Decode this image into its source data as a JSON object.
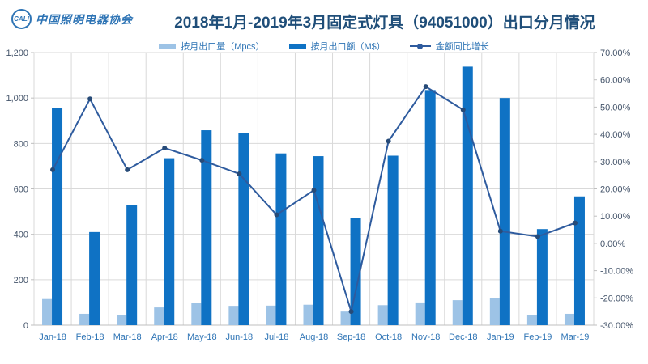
{
  "header": {
    "logo": {
      "org_abbr": "CALI",
      "org_name": "中国照明电器协会"
    },
    "title": "2018年1月-2019年3月固定式灯具（94051000）出口分月情况"
  },
  "legend": [
    {
      "label": "按月出口量（Mpcs）",
      "type": "bar",
      "color": "#9DC3E6"
    },
    {
      "label": "按月出口额（M$）",
      "type": "bar",
      "color": "#0F72C4"
    },
    {
      "label": "金额同比增长",
      "type": "line",
      "color": "#2E5B9E"
    }
  ],
  "chart_data": {
    "type": "combo",
    "title": "2018年1月-2019年3月固定式灯具（94051000）出口分月情况",
    "categories": [
      "Jan-18",
      "Feb-18",
      "Mar-18",
      "Apr-18",
      "May-18",
      "Jun-18",
      "Jul-18",
      "Aug-18",
      "Sep-18",
      "Oct-18",
      "Nov-18",
      "Dec-18",
      "Jan-19",
      "Feb-19",
      "Mar-19"
    ],
    "series": [
      {
        "name": "按月出口量（Mpcs）",
        "type": "bar",
        "axis": "left",
        "color": "#9DC3E6",
        "values": [
          115,
          50,
          45,
          78,
          98,
          85,
          86,
          90,
          60,
          88,
          100,
          110,
          120,
          45,
          50
        ]
      },
      {
        "name": "按月出口额（M$）",
        "type": "bar",
        "axis": "left",
        "color": "#0F72C4",
        "values": [
          955,
          410,
          527,
          735,
          858,
          847,
          756,
          744,
          472,
          746,
          1035,
          1138,
          1000,
          423,
          567
        ]
      },
      {
        "name": "金额同比增长",
        "type": "line",
        "axis": "right",
        "color": "#2E5B9E",
        "marker_color": "#274B78",
        "values": [
          27,
          53,
          27,
          35,
          30.5,
          25.5,
          10.5,
          19.5,
          -25,
          37.5,
          57.5,
          49,
          4.5,
          2.5,
          7.5
        ]
      }
    ],
    "axes": {
      "left": {
        "min": 0,
        "max": 1200,
        "step": 200,
        "labels_top_down": [
          "1,200",
          "1,000",
          "800",
          "600",
          "400",
          "200",
          "0"
        ]
      },
      "right": {
        "min": -30,
        "max": 70,
        "step": 10,
        "labels_top_down": [
          "70.00%",
          "60.00%",
          "50.00%",
          "40.00%",
          "30.00%",
          "20.00%",
          "10.00%",
          "0.00%",
          "-10.00%",
          "-20.00%",
          "-30.00%"
        ]
      }
    },
    "grid": {
      "horizontal": true,
      "vertical": true
    },
    "legend_position": "top"
  },
  "colors": {
    "title": "#1F4E79",
    "axis_y_label": "#44546A",
    "axis_x_label": "#2E74B5",
    "gridline": "#D9D9D9",
    "axis_line": "#BFBFBF",
    "background": "#FFFFFF"
  }
}
